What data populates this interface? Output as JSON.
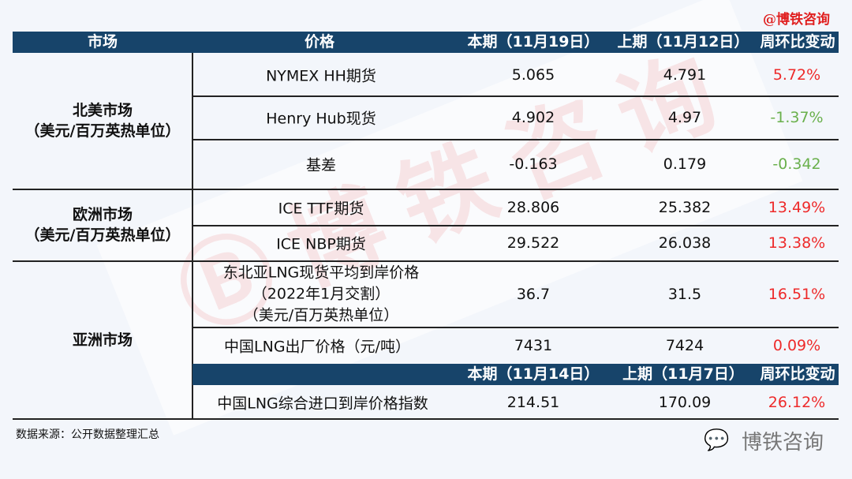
{
  "brand": "@博铁咨询",
  "header": {
    "market": "市场",
    "price": "价格",
    "current": "本期（11月19日）",
    "previous": "上期（11月12日）",
    "change": "周环比变动"
  },
  "subheader": {
    "current": "本期（11月14日）",
    "previous": "上期（11月7日）",
    "change": "周环比变动"
  },
  "groups": [
    {
      "market": "北美市场",
      "unit": "（美元/百万英热单位）"
    },
    {
      "market": "欧洲市场",
      "unit": "（美元/百万英热单位）"
    },
    {
      "market": "亚洲市场"
    }
  ],
  "rows": [
    {
      "price": "NYMEX HH期货",
      "current": "5.065",
      "previous": "4.791",
      "change": "5.72%",
      "dir": "up"
    },
    {
      "price": "Henry Hub现货",
      "current": "4.902",
      "previous": "4.97",
      "change": "-1.37%",
      "dir": "down"
    },
    {
      "price": "基差",
      "current": "-0.163",
      "previous": "0.179",
      "change": "-0.342",
      "dir": "down"
    },
    {
      "price": "ICE TTF期货",
      "current": "28.806",
      "previous": "25.382",
      "change": "13.49%",
      "dir": "up"
    },
    {
      "price": "ICE NBP期货",
      "current": "29.522",
      "previous": "26.038",
      "change": "13.38%",
      "dir": "up"
    },
    {
      "price": "东北亚LNG现货平均到岸价格",
      "price2": "（2022年1月交割）",
      "price3": "（美元/百万英热单位）",
      "current": "36.7",
      "previous": "31.5",
      "change": "16.51%",
      "dir": "up"
    },
    {
      "price": "中国LNG出厂价格（元/吨）",
      "current": "7431",
      "previous": "7424",
      "change": "0.09%",
      "dir": "up"
    },
    {
      "price": "中国LNG综合进口到岸价格指数",
      "current": "214.51",
      "previous": "170.09",
      "change": "26.12%",
      "dir": "up"
    }
  ],
  "source": "数据来源：公开数据整理汇总",
  "footer_brand": "博铁咨询",
  "colors": {
    "header_bg": "#17446a",
    "up": "#ee2a2a",
    "down": "#6ab04c"
  }
}
